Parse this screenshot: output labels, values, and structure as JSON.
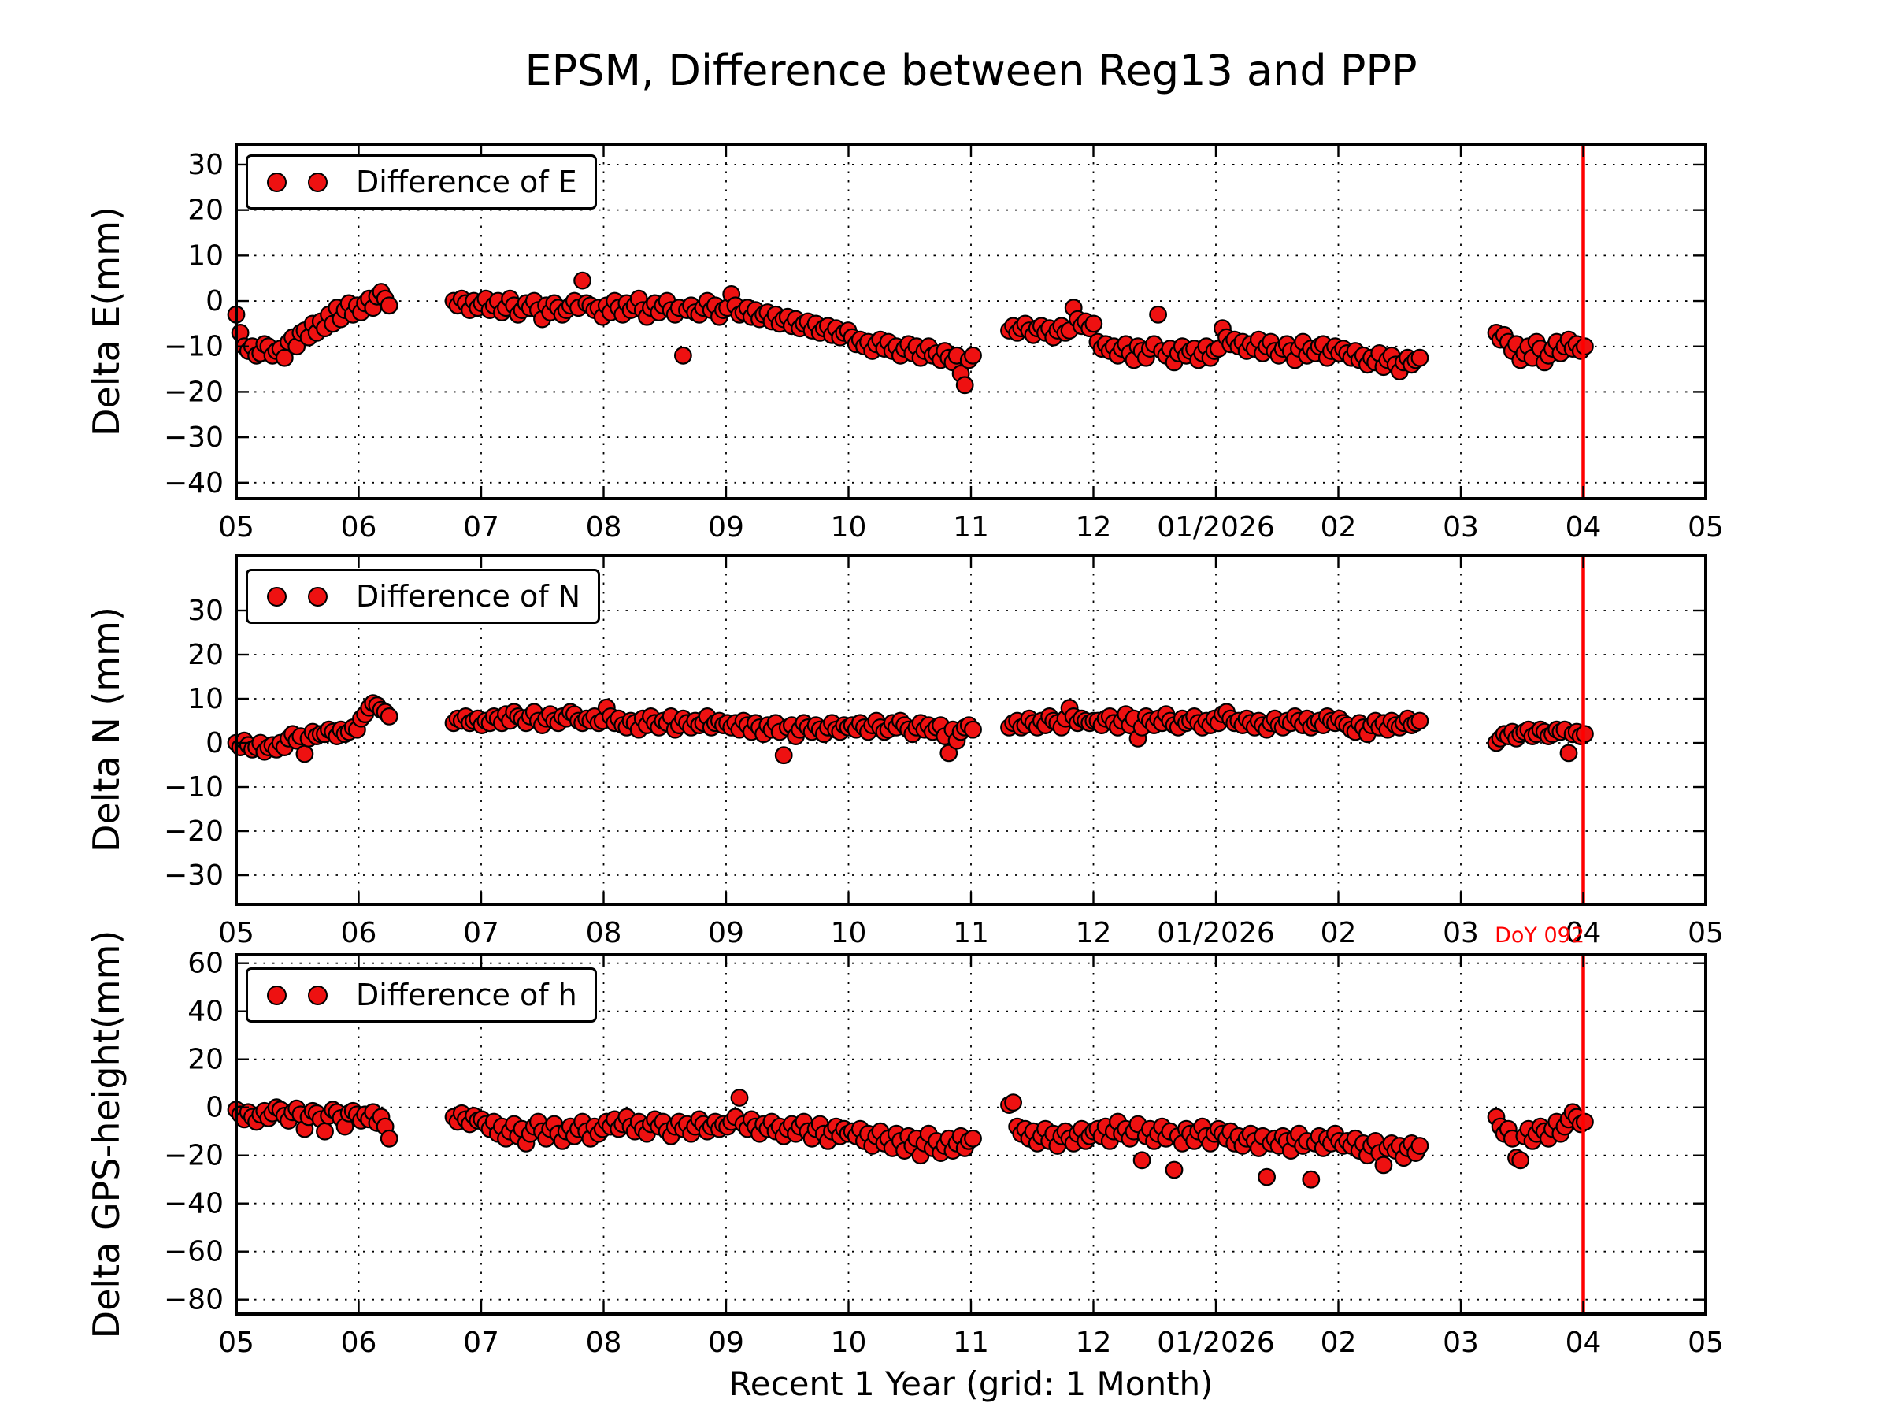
{
  "figure": {
    "title": "EPSM, Difference between Reg13 and PPP",
    "xlabel": "Recent 1 Year (grid: 1 Month)",
    "background": "#ffffff",
    "marker_face": "#ee1111",
    "marker_edge": "#000000",
    "grid_style": "dotted black, 1 month spacing",
    "vline": {
      "month_index": 16,
      "color": "#ff0000",
      "label": "DoY 092"
    }
  },
  "annotation": {
    "doy_label": "DoY 092"
  },
  "x_axis": {
    "ticklabels": [
      "05",
      "06",
      "07",
      "08",
      "09",
      "10",
      "11",
      "12",
      "01/2026",
      "02",
      "03",
      "04",
      "05"
    ],
    "start_month": 5,
    "end_month": 17,
    "days_per_month": 30.42
  },
  "chart_data": [
    {
      "type": "scatter",
      "series_name": "delta-e",
      "legend": "Difference of E",
      "ylabel": "Delta E(mm)",
      "yticks": [
        30,
        20,
        10,
        0,
        -10,
        -20,
        -30,
        -40
      ],
      "ytick_labels": [
        "30",
        "20",
        "10",
        "0",
        "−10",
        "−20",
        "−30",
        "−40"
      ],
      "ylim": [
        34.5,
        -43.5
      ],
      "segments": [
        {
          "start": 0,
          "values": [
            -3,
            -7,
            -10,
            -11,
            -10,
            -12,
            -11.5,
            -9.5,
            -10,
            -12,
            -11,
            -10.5,
            -12.5,
            -9,
            -8,
            -10,
            -7,
            -6.5,
            -8,
            -5,
            -7,
            -4.5,
            -6,
            -3,
            -5,
            -1.5,
            -4,
            -2,
            -0.5,
            -3,
            -1
          ]
        },
        {
          "start": 31,
          "values": [
            -2.5,
            -0.5,
            0.5,
            -1.5,
            1,
            2,
            0.5,
            -1
          ]
        },
        {
          "start": 54,
          "values": [
            0,
            -1,
            0.5,
            -0.5,
            -2,
            0,
            -1.5
          ]
        },
        {
          "start": 61,
          "values": [
            -0.5,
            0.5,
            -2,
            -1,
            0,
            -2.5,
            -1.5,
            0.5,
            -1,
            -3,
            -2,
            -0.5,
            -1.5,
            0,
            -2,
            -4,
            -1,
            -2.5,
            -0.5,
            -1.5,
            -3,
            -2,
            -1,
            0,
            -1.5,
            4.5,
            -0.5,
            -1,
            -2,
            -1.5,
            -3.5
          ]
        },
        {
          "start": 92,
          "values": [
            -1,
            -2.5,
            0,
            -1.5,
            -3,
            -0.5,
            -2,
            -1,
            0.5,
            -2,
            -3.5,
            -1.5,
            -0.5,
            -2.5,
            -1,
            0,
            -2,
            -3,
            -1.5,
            -12,
            -2,
            -1,
            -2.5,
            -3,
            -1.5,
            0,
            -2,
            -1,
            -3.5,
            -2,
            -1.5
          ]
        },
        {
          "start": 123,
          "values": [
            1.5,
            -1,
            -3,
            -2.5,
            -1.5,
            -3.5,
            -2,
            -4,
            -3,
            -2.5,
            -4.5,
            -3,
            -5,
            -4,
            -3.5,
            -5.5,
            -4,
            -6,
            -5,
            -4.5,
            -6.5,
            -5,
            -7,
            -6,
            -5.5,
            -7.5,
            -6,
            -8,
            -7,
            -6.5
          ]
        },
        {
          "start": 153,
          "values": [
            -8,
            -9.5,
            -8.5,
            -10,
            -9,
            -11,
            -9.5,
            -8.5,
            -10.5,
            -9,
            -11,
            -10,
            -12,
            -10.5,
            -9.5,
            -11.5,
            -10,
            -12.5,
            -11,
            -10,
            -12,
            -11.5,
            -13,
            -11,
            -12.5,
            -13.5,
            -12,
            -16,
            -18.5,
            -13,
            -12
          ]
        },
        {
          "start": 192,
          "values": [
            -6.5,
            -5.5,
            -7,
            -6,
            -5,
            -6.5,
            -7.5,
            -6,
            -5.5,
            -7,
            -6,
            -8,
            -6.5,
            -5.5,
            -7,
            -6.5,
            -1.5,
            -4,
            -5.5,
            -4.5,
            -6,
            -5
          ]
        },
        {
          "start": 214,
          "values": [
            -9,
            -10.5,
            -9.5,
            -11,
            -10,
            -12,
            -10.5,
            -9.5,
            -11.5,
            -13,
            -10,
            -11,
            -12.5,
            -10.5,
            -9.5,
            -3,
            -11,
            -12,
            -10.5,
            -13.5,
            -11.5,
            -10,
            -12,
            -11,
            -10.5,
            -13,
            -11.5,
            -10,
            -12.5,
            -11,
            -10.5
          ]
        },
        {
          "start": 245,
          "values": [
            -6,
            -8,
            -9.5,
            -8.5,
            -10,
            -9,
            -11,
            -9.5,
            -10.5,
            -8.5,
            -11.5,
            -10,
            -9,
            -11,
            -12,
            -10.5,
            -9.5,
            -11,
            -13,
            -10.5,
            -9,
            -12,
            -10.5,
            -11.5,
            -10,
            -9.5,
            -12.5,
            -11,
            -10,
            -11.5,
            -10.5
          ]
        },
        {
          "start": 276,
          "values": [
            -11.5,
            -12.5,
            -11,
            -13,
            -12,
            -14,
            -12.5,
            -13.5,
            -11.5,
            -14.5,
            -13,
            -12,
            -14,
            -15.5,
            -13.5,
            -12.5,
            -14,
            -13,
            -12.5
          ]
        },
        {
          "start": 313,
          "values": [
            -7,
            -8.5,
            -7.5,
            -9,
            -11,
            -9.5,
            -13,
            -11.5,
            -10,
            -12.5,
            -9,
            -10.5,
            -13.5,
            -12,
            -10.5,
            -9,
            -11.5,
            -10,
            -8.5,
            -10.5,
            -9.5,
            -11,
            -10
          ]
        }
      ]
    },
    {
      "type": "scatter",
      "series_name": "delta-n",
      "legend": "Difference of N",
      "ylabel": "Delta N (mm)",
      "yticks": [
        30,
        20,
        10,
        0,
        -10,
        -20,
        -30
      ],
      "ytick_labels": [
        "30",
        "20",
        "10",
        "0",
        "−10",
        "−20",
        "−30"
      ],
      "ylim": [
        42.5,
        -36.6
      ],
      "segments": [
        {
          "start": 0,
          "values": [
            0,
            -1,
            0.5,
            -0.5,
            -1.5,
            -1,
            0,
            -2,
            -1,
            -0.5,
            -1.5,
            0,
            -1,
            1,
            2,
            0.5,
            1.5,
            -2.5,
            1,
            2.5,
            1.5,
            2,
            2,
            3,
            2.5,
            1.5,
            3,
            2,
            2.5,
            3.5,
            3
          ]
        },
        {
          "start": 31,
          "values": [
            5.5,
            6.5,
            8,
            9,
            8.5,
            7.5,
            7,
            6
          ]
        },
        {
          "start": 54,
          "values": [
            4.5,
            5.5,
            5,
            6,
            4.5,
            5,
            5.5
          ]
        },
        {
          "start": 61,
          "values": [
            4,
            5,
            4.5,
            6,
            5.5,
            4.5,
            6.5,
            5,
            7,
            6,
            5.5,
            4.5,
            6,
            7,
            5,
            4,
            5.5,
            6.5,
            5,
            4.5,
            6,
            5.5,
            7,
            6.5,
            5,
            4.5,
            5.5,
            5,
            6,
            4.5,
            5
          ]
        },
        {
          "start": 92,
          "values": [
            8,
            6,
            4.5,
            5.5,
            4,
            3.5,
            5,
            4.5,
            3,
            5.5,
            4,
            6,
            4.5,
            3.5,
            5,
            4.5,
            6,
            3,
            4,
            5.5,
            4.5,
            3.5,
            5,
            4,
            4.5,
            6,
            3.5,
            4.5,
            5,
            4,
            4.5
          ]
        },
        {
          "start": 123,
          "values": [
            3.5,
            4.5,
            3,
            5,
            4,
            2.5,
            4.5,
            3.5,
            2,
            4,
            3,
            4.5,
            2.5,
            -2.8,
            3.5,
            4,
            1.5,
            3,
            4.5,
            3.5,
            2.5,
            4,
            3,
            2,
            3.5,
            4.5,
            3,
            2.5,
            4,
            3.5
          ]
        },
        {
          "start": 153,
          "values": [
            4,
            3,
            4.5,
            3.5,
            2.5,
            4,
            5,
            3.5,
            2.5,
            3,
            4.5,
            3.5,
            5,
            4,
            3,
            2,
            3.5,
            4.5,
            3,
            4,
            2.5,
            3.5,
            4,
            1.5,
            -2.3,
            3,
            0.5,
            2.5,
            3.5,
            4,
            3
          ]
        },
        {
          "start": 192,
          "values": [
            3.5,
            4.5,
            5,
            3.5,
            4,
            5.5,
            4.5,
            3.5,
            5,
            4,
            6,
            5,
            4.5,
            3.5,
            5.5,
            7.9,
            6,
            4.5,
            5.5,
            5,
            4.5,
            5
          ]
        },
        {
          "start": 214,
          "values": [
            5,
            4,
            5.5,
            6,
            4.5,
            3.5,
            5,
            6.5,
            4,
            5.5,
            1,
            3.5,
            6,
            5,
            4,
            5.5,
            4.5,
            6.5,
            5,
            4,
            3.5,
            5.5,
            4.5,
            5,
            6,
            4.5,
            3.5,
            5,
            4,
            5.5,
            4.5
          ]
        },
        {
          "start": 245,
          "values": [
            6.5,
            7,
            5.5,
            4.5,
            5,
            4,
            5.5,
            4.5,
            3.5,
            5,
            4,
            3,
            4.5,
            5.5,
            4,
            3.5,
            5,
            4.5,
            6,
            5,
            4,
            5.5,
            3.5,
            4.5,
            5,
            4,
            6,
            5,
            4.5,
            5.5,
            4.5
          ]
        },
        {
          "start": 276,
          "values": [
            4,
            3,
            2.5,
            4.5,
            3.5,
            2,
            4,
            5,
            3.5,
            4.5,
            3,
            5,
            4,
            3.5,
            4.5,
            5.5,
            4,
            4.5,
            5
          ]
        },
        {
          "start": 313,
          "values": [
            0,
            1,
            2,
            1.5,
            2.5,
            1,
            2,
            2.5,
            3,
            1.5,
            2,
            3,
            2.5,
            1.5,
            2,
            3,
            2.5,
            3,
            -2.3,
            2,
            2.5,
            1.5,
            2
          ]
        }
      ]
    },
    {
      "type": "scatter",
      "series_name": "delta-h",
      "legend": "Difference of h",
      "ylabel": "Delta GPS-height(mm)",
      "yticks": [
        60,
        40,
        20,
        0,
        -20,
        -40,
        -60,
        -80
      ],
      "ytick_labels": [
        "60",
        "40",
        "20",
        "0",
        "−20",
        "−40",
        "−60",
        "−80"
      ],
      "ylim": [
        63.5,
        -86
      ],
      "segments": [
        {
          "start": 0,
          "values": [
            -1,
            -3,
            -5,
            -2,
            -4,
            -6,
            -3,
            -1.5,
            -4.5,
            -2.5,
            0,
            -1,
            -3.5,
            -5.5,
            -2,
            -0.5,
            -3,
            -9,
            -4,
            -1.5,
            -2.5,
            -5,
            -10,
            -3.5,
            -1,
            -2,
            -4.5,
            -8,
            -2.5,
            -1.5,
            -3
          ]
        },
        {
          "start": 31,
          "values": [
            -5.5,
            -3,
            -5,
            -2,
            -6.5,
            -4,
            -8,
            -13
          ]
        },
        {
          "start": 54,
          "values": [
            -4,
            -6,
            -2.5,
            -5,
            -7,
            -3.5,
            -5.5
          ]
        },
        {
          "start": 61,
          "values": [
            -5,
            -7,
            -9,
            -6,
            -11,
            -8,
            -13,
            -10,
            -7,
            -12,
            -9,
            -15,
            -11,
            -8,
            -6,
            -10,
            -13,
            -9,
            -7,
            -11,
            -14,
            -10,
            -8,
            -12,
            -9,
            -6,
            -10,
            -13,
            -8,
            -11,
            -9
          ]
        },
        {
          "start": 92,
          "values": [
            -6,
            -8,
            -5,
            -9,
            -7,
            -4,
            -8,
            -10,
            -6,
            -9,
            -11,
            -7,
            -5,
            -8,
            -6,
            -10,
            -12,
            -8,
            -6,
            -9,
            -7,
            -11,
            -8,
            -5,
            -7,
            -10,
            -8,
            -6,
            -9,
            -7,
            -8
          ]
        },
        {
          "start": 123,
          "values": [
            -6,
            -4,
            4,
            -7,
            -9,
            -5,
            -8,
            -11,
            -7,
            -9,
            -6,
            -10,
            -8,
            -12,
            -9,
            -7,
            -11,
            -8,
            -6,
            -10,
            -13,
            -9,
            -7,
            -11,
            -14,
            -10,
            -8,
            -12,
            -9,
            -11
          ]
        },
        {
          "start": 153,
          "values": [
            -10,
            -12,
            -9,
            -14,
            -11,
            -16,
            -12,
            -10,
            -15,
            -13,
            -17,
            -11,
            -14,
            -18,
            -12,
            -16,
            -13,
            -20,
            -15,
            -11,
            -17,
            -14,
            -19,
            -16,
            -13,
            -18,
            -15,
            -12,
            -17,
            -14,
            -13
          ]
        },
        {
          "start": 192,
          "values": [
            1,
            2,
            -8,
            -11,
            -9,
            -13,
            -10,
            -15,
            -12,
            -9,
            -14,
            -11,
            -16,
            -12,
            -10,
            -13,
            -15,
            -11,
            -9,
            -14,
            -12,
            -10
          ]
        },
        {
          "start": 214,
          "values": [
            -9,
            -12,
            -8,
            -14,
            -10,
            -6,
            -11,
            -9,
            -13,
            -10,
            -7,
            -22,
            -12,
            -9,
            -14,
            -11,
            -8,
            -13,
            -10,
            -26,
            -12,
            -15,
            -9,
            -11,
            -14,
            -10,
            -8,
            -12,
            -15,
            -11,
            -9
          ]
        },
        {
          "start": 245,
          "values": [
            -11,
            -13,
            -10,
            -15,
            -12,
            -16,
            -13,
            -11,
            -14,
            -17,
            -12,
            -29,
            -15,
            -13,
            -16,
            -12,
            -14,
            -18,
            -13,
            -11,
            -16,
            -14,
            -30,
            -15,
            -12,
            -17,
            -13,
            -15,
            -11,
            -14,
            -16
          ]
        },
        {
          "start": 276,
          "values": [
            -14,
            -16,
            -13,
            -18,
            -15,
            -20,
            -16,
            -14,
            -19,
            -24,
            -17,
            -15,
            -18,
            -16,
            -21,
            -17,
            -15,
            -19,
            -16
          ]
        },
        {
          "start": 313,
          "values": [
            -4,
            -8,
            -11,
            -9,
            -13,
            -21,
            -22,
            -12,
            -9,
            -14,
            -11,
            -8,
            -10,
            -13,
            -9,
            -6,
            -11,
            -8,
            -5,
            -2,
            -4,
            -7,
            -6
          ]
        }
      ]
    }
  ]
}
